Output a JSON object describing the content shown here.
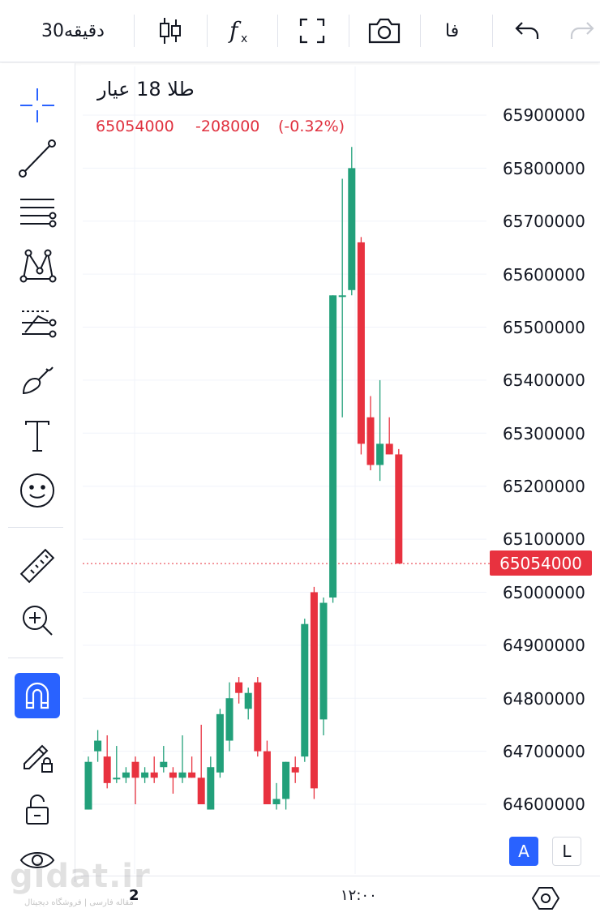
{
  "toolbar": {
    "interval": "30دقیقه",
    "fx_icon": "indicators-icon",
    "language": "فا"
  },
  "legend": {
    "symbol": "طلا 18 عیار",
    "close": "65054000",
    "change": "-208000",
    "change_pct": "(-0.32%)"
  },
  "price_axis": {
    "labels": [
      "65900000",
      "65800000",
      "65700000",
      "65600000",
      "65500000",
      "65400000",
      "65300000",
      "65200000",
      "65100000",
      "65000000",
      "64900000",
      "64800000",
      "64700000",
      "64600000"
    ],
    "current_price": "65054000"
  },
  "time_axis": {
    "labels": [
      "2",
      "۱۲:۰۰"
    ]
  },
  "scale_buttons": {
    "auto": "A",
    "log": "L"
  },
  "watermark": {
    "text": "gidat.ir",
    "subtitle": "مقاله فارسی | فروشگاه دیجیتال"
  },
  "colors": {
    "up": "#22a07a",
    "down": "#e8323f",
    "accent": "#2962ff"
  },
  "chart_data": {
    "type": "candlestick",
    "up_color": "#22a07a",
    "down_color": "#e8323f",
    "ylim": [
      64560000,
      65970000
    ],
    "candles": [
      {
        "o": 64590000,
        "h": 64690000,
        "l": 64590000,
        "c": 64680000
      },
      {
        "o": 64700000,
        "h": 64740000,
        "l": 64680000,
        "c": 64720000
      },
      {
        "o": 64690000,
        "h": 64730000,
        "l": 64630000,
        "c": 64640000
      },
      {
        "o": 64650000,
        "h": 64710000,
        "l": 64640000,
        "c": 64650000
      },
      {
        "o": 64650000,
        "h": 64670000,
        "l": 64640000,
        "c": 64660000
      },
      {
        "o": 64680000,
        "h": 64690000,
        "l": 64600000,
        "c": 64650000
      },
      {
        "o": 64650000,
        "h": 64670000,
        "l": 64640000,
        "c": 64660000
      },
      {
        "o": 64660000,
        "h": 64690000,
        "l": 64640000,
        "c": 64650000
      },
      {
        "o": 64670000,
        "h": 64710000,
        "l": 64660000,
        "c": 64680000
      },
      {
        "o": 64660000,
        "h": 64670000,
        "l": 64620000,
        "c": 64650000
      },
      {
        "o": 64650000,
        "h": 64730000,
        "l": 64640000,
        "c": 64660000
      },
      {
        "o": 64660000,
        "h": 64690000,
        "l": 64650000,
        "c": 64650000
      },
      {
        "o": 64650000,
        "h": 64750000,
        "l": 64600000,
        "c": 64600000
      },
      {
        "o": 64590000,
        "h": 64690000,
        "l": 64590000,
        "c": 64670000
      },
      {
        "o": 64660000,
        "h": 64780000,
        "l": 64650000,
        "c": 64770000
      },
      {
        "o": 64720000,
        "h": 64830000,
        "l": 64700000,
        "c": 64800000
      },
      {
        "o": 64830000,
        "h": 64840000,
        "l": 64790000,
        "c": 64810000
      },
      {
        "o": 64780000,
        "h": 64820000,
        "l": 64760000,
        "c": 64810000
      },
      {
        "o": 64830000,
        "h": 64840000,
        "l": 64690000,
        "c": 64700000
      },
      {
        "o": 64700000,
        "h": 64720000,
        "l": 64600000,
        "c": 64600000
      },
      {
        "o": 64600000,
        "h": 64640000,
        "l": 64590000,
        "c": 64610000
      },
      {
        "o": 64610000,
        "h": 64680000,
        "l": 64590000,
        "c": 64680000
      },
      {
        "o": 64670000,
        "h": 64690000,
        "l": 64640000,
        "c": 64660000
      },
      {
        "o": 64690000,
        "h": 64950000,
        "l": 64680000,
        "c": 64940000
      },
      {
        "o": 65000000,
        "h": 65010000,
        "l": 64610000,
        "c": 64630000
      },
      {
        "o": 64760000,
        "h": 64990000,
        "l": 64730000,
        "c": 64980000
      },
      {
        "o": 64990000,
        "h": 65560000,
        "l": 64980000,
        "c": 65560000
      },
      {
        "o": 65560000,
        "h": 65780000,
        "l": 65330000,
        "c": 65560000
      },
      {
        "o": 65570000,
        "h": 65840000,
        "l": 65560000,
        "c": 65800000
      },
      {
        "o": 65660000,
        "h": 65670000,
        "l": 65260000,
        "c": 65280000
      },
      {
        "o": 65330000,
        "h": 65370000,
        "l": 65230000,
        "c": 65240000
      },
      {
        "o": 65240000,
        "h": 65400000,
        "l": 65210000,
        "c": 65280000
      },
      {
        "o": 65280000,
        "h": 65330000,
        "l": 65260000,
        "c": 65260000
      },
      {
        "o": 65260000,
        "h": 65270000,
        "l": 65054000,
        "c": 65054000
      }
    ]
  }
}
